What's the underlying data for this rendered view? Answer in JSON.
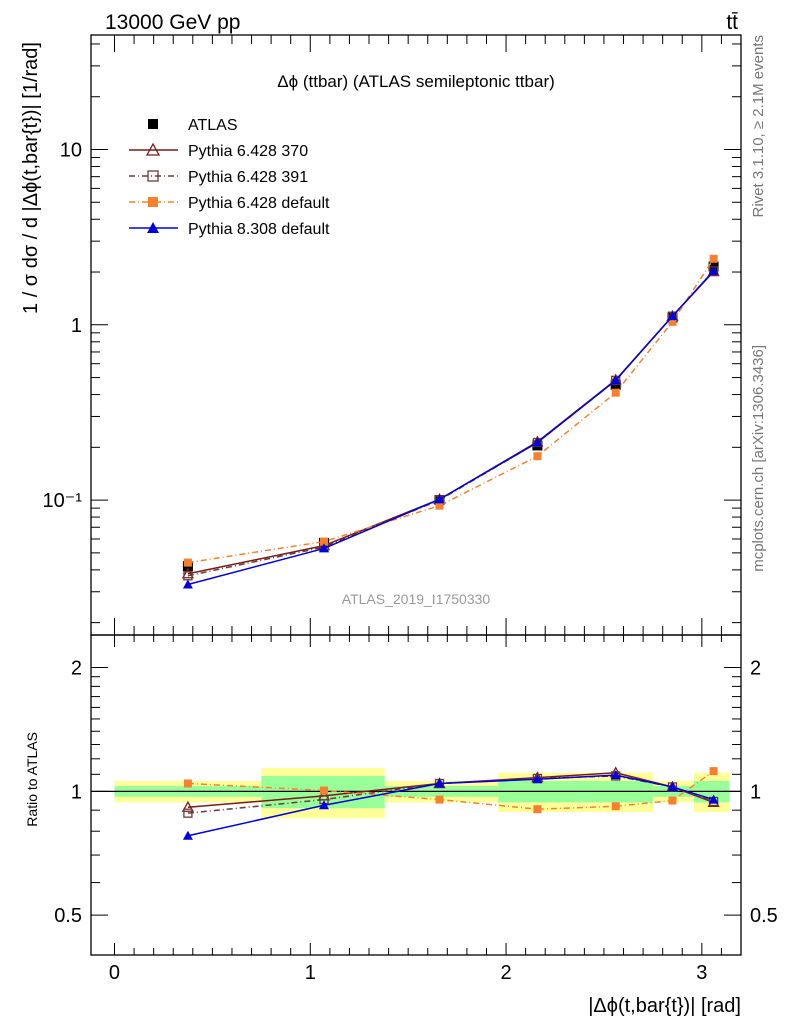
{
  "header": {
    "energy_label": "13000 GeV pp",
    "process_label": "tt̄"
  },
  "side_labels": {
    "rivet": "Rivet 3.1.10, ≥ 2.1M events",
    "mcplots": "mcplots.cern.ch [arXiv:1306.3436]"
  },
  "chart_data": {
    "type": "line",
    "title": "Δϕ (ttbar) (ATLAS semileptonic ttbar)",
    "watermark": "ATLAS_2019_I1750330",
    "xlabel": "|Δϕ(t,bar{t})| [rad]",
    "ylabel": "1 / σ dσ / d |Δϕ(t,bar{t})| [1/rad]",
    "ratio_ylabel": "Ratio to ATLAS",
    "x": [
      0.375,
      1.07,
      1.66,
      2.16,
      2.56,
      2.85,
      3.06
    ],
    "xlim": [
      -0.12,
      3.2
    ],
    "ylim": [
      0.017,
      45
    ],
    "ratio_ylim": [
      0.4,
      2.4
    ],
    "yscale": "log",
    "x_ticks": [
      {
        "v": 0,
        "l": "0"
      },
      {
        "v": 1,
        "l": "1"
      },
      {
        "v": 2,
        "l": "2"
      },
      {
        "v": 3,
        "l": "3"
      }
    ],
    "y_ticks": [
      {
        "v": 0.1,
        "l": "10⁻¹"
      },
      {
        "v": 1,
        "l": "1"
      },
      {
        "v": 10,
        "l": "10"
      }
    ],
    "ratio_ticks": [
      {
        "v": 0.5,
        "l": "0.5"
      },
      {
        "v": 1,
        "l": "1"
      },
      {
        "v": 2,
        "l": "2"
      }
    ],
    "bins": [
      {
        "lo": 0.0,
        "hi": 0.75,
        "g": 0.03,
        "y": 0.06
      },
      {
        "lo": 0.75,
        "hi": 1.38,
        "g": 0.09,
        "y": 0.14
      },
      {
        "lo": 1.38,
        "hi": 1.96,
        "g": 0.03,
        "y": 0.06
      },
      {
        "lo": 1.96,
        "hi": 2.36,
        "g": 0.06,
        "y": 0.11
      },
      {
        "lo": 2.36,
        "hi": 2.75,
        "g": 0.06,
        "y": 0.11
      },
      {
        "lo": 2.75,
        "hi": 2.96,
        "g": 0.03,
        "y": 0.06
      },
      {
        "lo": 2.96,
        "hi": 3.14,
        "g": 0.06,
        "y": 0.11
      }
    ],
    "series": [
      {
        "name": "ATLAS",
        "color": "#000000",
        "marker": "square",
        "dash": "",
        "values": [
          0.042,
          0.057,
          0.1,
          0.205,
          0.455,
          1.1,
          2.15
        ],
        "ratio": [
          1,
          1,
          1,
          1,
          1,
          1,
          1
        ]
      },
      {
        "name": "Pythia 6.428 370",
        "color": "#7a1a1a",
        "marker": "triangle-open",
        "dash": "",
        "values": [
          0.038,
          0.055,
          0.101,
          0.215,
          0.485,
          1.12,
          2.01
        ],
        "ratio": [
          0.915,
          0.975,
          1.045,
          1.08,
          1.11,
          1.025,
          0.94
        ]
      },
      {
        "name": "Pythia 6.428 391",
        "color": "#6b3a3a",
        "marker": "square-open",
        "dash": "6,3,1,3",
        "values": [
          0.037,
          0.054,
          0.1,
          0.213,
          0.482,
          1.12,
          2.03
        ],
        "ratio": [
          0.885,
          0.955,
          1.045,
          1.075,
          1.09,
          1.025,
          0.945
        ]
      },
      {
        "name": "Pythia 6.428 default",
        "color": "#f7802f",
        "marker": "square",
        "dash": "6,3,1,3",
        "values": [
          0.044,
          0.058,
          0.093,
          0.178,
          0.41,
          1.04,
          2.38
        ],
        "ratio": [
          1.045,
          1.005,
          0.955,
          0.905,
          0.92,
          0.95,
          1.12
        ]
      },
      {
        "name": "Pythia 8.308 default",
        "color": "#0000dd",
        "marker": "triangle",
        "dash": "",
        "values": [
          0.033,
          0.053,
          0.101,
          0.213,
          0.482,
          1.12,
          2.03
        ],
        "ratio": [
          0.78,
          0.925,
          1.045,
          1.07,
          1.095,
          1.025,
          0.955
        ]
      }
    ]
  }
}
